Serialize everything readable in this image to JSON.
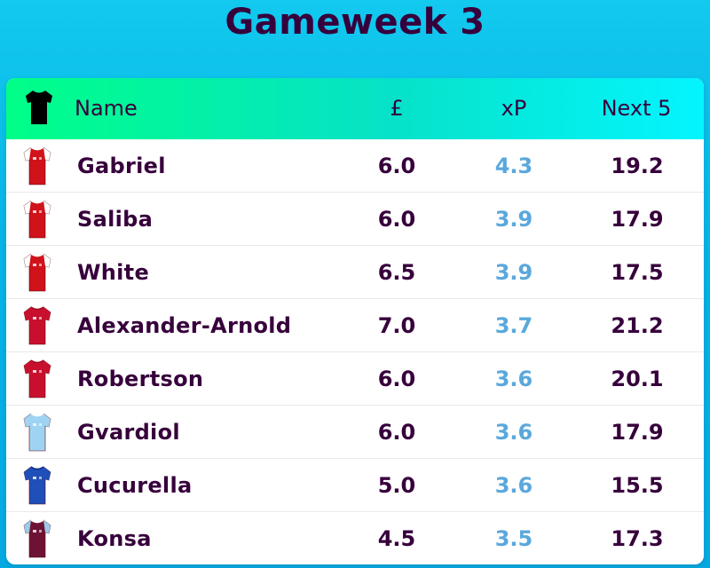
{
  "title": "Gameweek 3",
  "colors": {
    "background": "#06b2e6",
    "title": "#37003c",
    "header_gradient_start": "#00ff87",
    "header_gradient_end": "#04f5ff",
    "xp": "#5aa8dc"
  },
  "table": {
    "header_icon": "shirt-icon",
    "columns": {
      "name": "Name",
      "price": "£",
      "xp": "xP",
      "next5": "Next 5"
    },
    "rows": [
      {
        "name": "Gabriel",
        "price": "6.0",
        "xp": "4.3",
        "next5": "19.2",
        "kit": "arsenal"
      },
      {
        "name": "Saliba",
        "price": "6.0",
        "xp": "3.9",
        "next5": "17.9",
        "kit": "arsenal"
      },
      {
        "name": "White",
        "price": "6.5",
        "xp": "3.9",
        "next5": "17.5",
        "kit": "arsenal"
      },
      {
        "name": "Alexander-Arnold",
        "price": "7.0",
        "xp": "3.7",
        "next5": "21.2",
        "kit": "liverpool"
      },
      {
        "name": "Robertson",
        "price": "6.0",
        "xp": "3.6",
        "next5": "20.1",
        "kit": "liverpool"
      },
      {
        "name": "Gvardiol",
        "price": "6.0",
        "xp": "3.6",
        "next5": "17.9",
        "kit": "man-city"
      },
      {
        "name": "Cucurella",
        "price": "5.0",
        "xp": "3.6",
        "next5": "15.5",
        "kit": "chelsea"
      },
      {
        "name": "Konsa",
        "price": "4.5",
        "xp": "3.5",
        "next5": "17.3",
        "kit": "aston-villa"
      }
    ]
  }
}
